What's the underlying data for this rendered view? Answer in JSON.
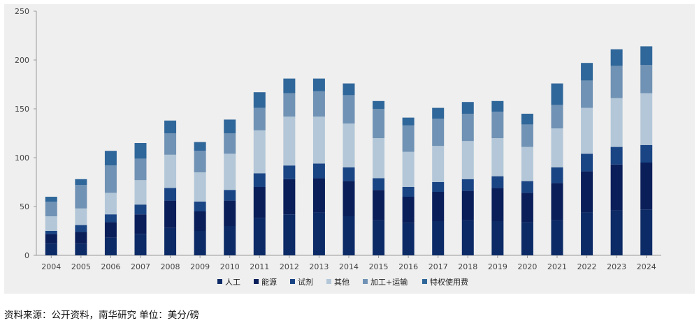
{
  "chart_data": {
    "type": "bar",
    "stacked": true,
    "title": "",
    "xlabel": "",
    "ylabel": "",
    "ylim": [
      0,
      250
    ],
    "yticks": [
      0,
      50,
      100,
      150,
      200,
      250
    ],
    "grid": false,
    "legend_position": "bottom",
    "categories": [
      "2004",
      "2005",
      "2006",
      "2007",
      "2008",
      "2009",
      "2010",
      "2011",
      "2012",
      "2013",
      "2014",
      "2015",
      "2016",
      "2017",
      "2018",
      "2019",
      "2020",
      "2021",
      "2022",
      "2023",
      "2024"
    ],
    "series": [
      {
        "name": "人工",
        "color": "#0b2a66",
        "values": [
          12,
          12,
          18,
          22,
          28,
          25,
          30,
          38,
          42,
          44,
          40,
          36,
          33,
          35,
          36,
          35,
          34,
          36,
          44,
          46,
          47
        ]
      },
      {
        "name": "能源",
        "color": "#0a1f5a",
        "values": [
          10,
          12,
          16,
          20,
          28,
          20,
          26,
          32,
          36,
          35,
          36,
          31,
          27,
          30,
          30,
          34,
          30,
          38,
          42,
          47,
          48
        ]
      },
      {
        "name": "试剂",
        "color": "#1a4585",
        "values": [
          3,
          7,
          8,
          10,
          13,
          10,
          11,
          14,
          14,
          15,
          14,
          12,
          10,
          10,
          12,
          12,
          12,
          16,
          18,
          18,
          18
        ]
      },
      {
        "name": "其他",
        "color": "#b3c7d8",
        "values": [
          15,
          17,
          22,
          25,
          34,
          30,
          37,
          44,
          50,
          48,
          45,
          41,
          36,
          37,
          39,
          39,
          35,
          40,
          47,
          50,
          53
        ]
      },
      {
        "name": "加工+运输",
        "color": "#7092b4",
        "values": [
          15,
          24,
          28,
          22,
          22,
          22,
          21,
          23,
          24,
          26,
          29,
          30,
          27,
          28,
          28,
          27,
          23,
          24,
          28,
          33,
          29
        ]
      },
      {
        "name": "特权使用费",
        "color": "#30679a",
        "values": [
          5,
          6,
          15,
          16,
          13,
          9,
          14,
          16,
          15,
          13,
          12,
          8,
          8,
          11,
          12,
          11,
          11,
          22,
          18,
          17,
          19
        ]
      }
    ]
  },
  "source_note": "资料来源：公开资料，南华研究 单位：美分/磅"
}
